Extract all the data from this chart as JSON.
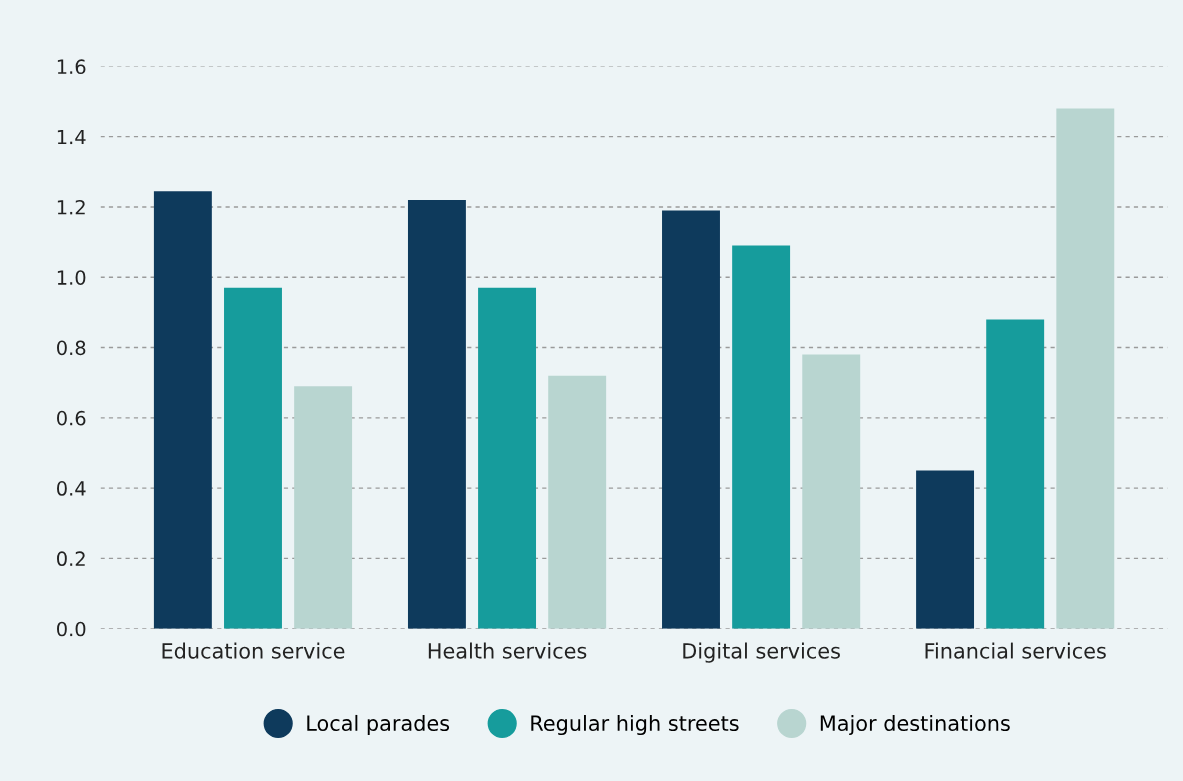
{
  "chart_data": {
    "type": "bar",
    "categories": [
      "Education service",
      "Health services",
      "Digital services",
      "Financial services"
    ],
    "series": [
      {
        "name": "Local parades",
        "color": "#0e3a5c",
        "values": [
          1.245,
          1.22,
          1.19,
          0.45
        ]
      },
      {
        "name": "Regular high streets",
        "color": "#169c9c",
        "values": [
          0.97,
          0.97,
          1.09,
          0.88
        ]
      },
      {
        "name": "Major destinations",
        "color": "#b8d5d0",
        "values": [
          0.69,
          0.72,
          0.78,
          1.48
        ]
      }
    ],
    "ylim": [
      0,
      1.6
    ],
    "yticks": [
      {
        "value": 0,
        "label": "0.0"
      },
      {
        "value": 0.2,
        "label": "0.2"
      },
      {
        "value": 0.4,
        "label": "0.4"
      },
      {
        "value": 0.6,
        "label": "0.6"
      },
      {
        "value": 0.8,
        "label": "0.8"
      },
      {
        "value": 1.0,
        "label": "1.0"
      },
      {
        "value": 1.2,
        "label": "1.2"
      },
      {
        "value": 1.4,
        "label": "1.4"
      },
      {
        "value": 1.6,
        "label": "1.6"
      }
    ],
    "grid": "y",
    "legend": "bottom"
  }
}
